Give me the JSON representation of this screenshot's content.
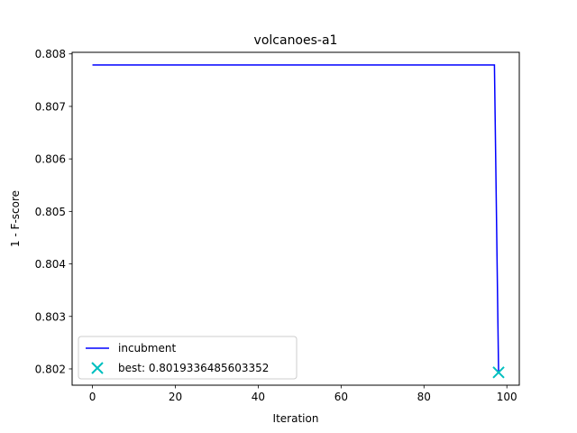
{
  "chart_data": {
    "type": "line",
    "title": "volcanoes-a1",
    "xlabel": "Iteration",
    "ylabel": "1 - F-score",
    "xlim": [
      -4.9,
      103
    ],
    "ylim": [
      0.80169,
      0.80803
    ],
    "xticks": [
      0,
      20,
      40,
      60,
      80,
      100
    ],
    "xtick_labels": [
      "0",
      "20",
      "40",
      "60",
      "80",
      "100"
    ],
    "yticks": [
      0.802,
      0.803,
      0.804,
      0.805,
      0.806,
      0.807,
      0.808
    ],
    "ytick_labels": [
      "0.802",
      "0.803",
      "0.804",
      "0.805",
      "0.806",
      "0.807",
      "0.808"
    ],
    "grid": false,
    "legend_position": "lower-left",
    "series": [
      {
        "name": "incubment",
        "kind": "line",
        "color": "#0000ff",
        "x": [
          0,
          97,
          98
        ],
        "y": [
          0.80779,
          0.80779,
          0.801934
        ]
      },
      {
        "name": "best: 0.8019336485603352",
        "kind": "marker",
        "marker": "x",
        "color": "#00bfbf",
        "x": [
          98
        ],
        "y": [
          0.8019336485603352
        ]
      }
    ]
  }
}
